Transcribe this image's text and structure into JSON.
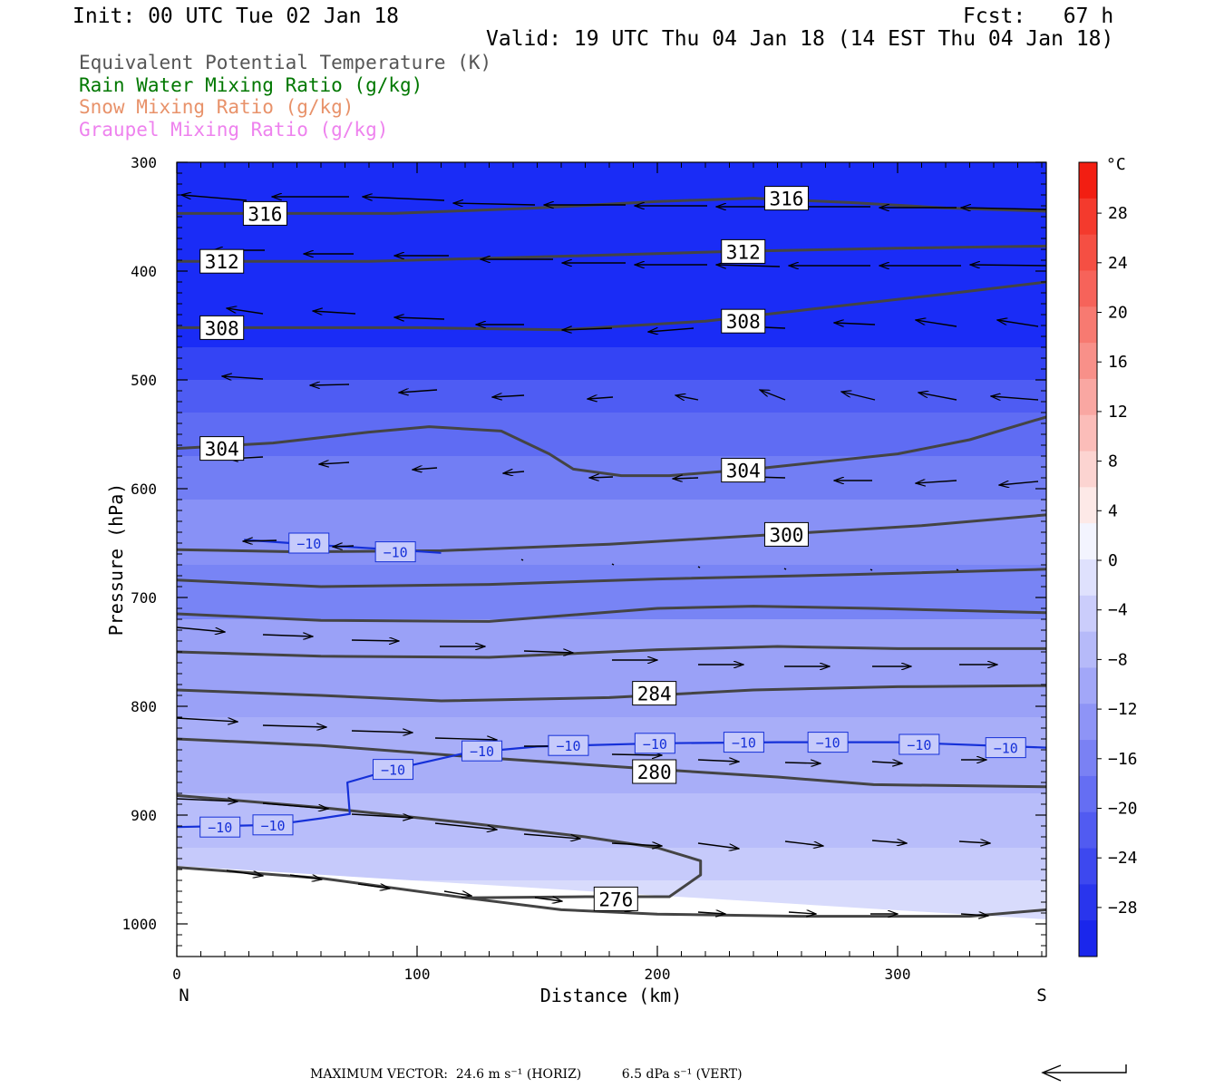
{
  "header": {
    "init": "Init: 00 UTC Tue 02 Jan 18",
    "fcst": "Fcst:   67 h",
    "valid": "Valid: 19 UTC Thu 04 Jan 18 (14 EST Thu 04 Jan 18)"
  },
  "legend": [
    {
      "label": "Equivalent Potential Temperature (K)",
      "color": "#555555"
    },
    {
      "label": "Rain Water Mixing Ratio (g/kg)",
      "color": "#007700"
    },
    {
      "label": "Snow Mixing Ratio (g/kg)",
      "color": "#e8926a"
    },
    {
      "label": "Graupel Mixing Ratio (g/kg)",
      "color": "#ee82ee"
    }
  ],
  "chart_data": {
    "type": "cross-section",
    "xlabel": "Distance (km)",
    "ylabel": "Pressure (hPa)",
    "x_ticks": [
      0,
      100,
      200,
      300
    ],
    "xlim": [
      0,
      362
    ],
    "y_ticks": [
      300,
      400,
      500,
      600,
      700,
      800,
      900,
      1000
    ],
    "ylim": [
      300,
      1030
    ],
    "x_end_labels": {
      "left": "N",
      "right": "S"
    },
    "colorbar": {
      "unit": "°C",
      "tick_labels": [
        "28",
        "24",
        "20",
        "16",
        "12",
        "8",
        "4",
        "0",
        "−4",
        "−8",
        "−12",
        "−16",
        "−20",
        "−24",
        "−28"
      ],
      "tick_values": [
        28,
        24,
        20,
        16,
        12,
        8,
        4,
        0,
        -4,
        -8,
        -12,
        -16,
        -20,
        -24,
        -28
      ]
    },
    "theta_e_contours": [
      {
        "label": "316",
        "points": [
          [
            0,
            347
          ],
          [
            90,
            347
          ],
          [
            150,
            342
          ],
          [
            200,
            336
          ],
          [
            240,
            333
          ],
          [
            280,
            337
          ],
          [
            320,
            342
          ],
          [
            362,
            345
          ]
        ]
      },
      {
        "label": "312",
        "points": [
          [
            0,
            391
          ],
          [
            80,
            391
          ],
          [
            150,
            387
          ],
          [
            230,
            382
          ],
          [
            300,
            379
          ],
          [
            362,
            377
          ]
        ]
      },
      {
        "label": "308",
        "points": [
          [
            0,
            452
          ],
          [
            100,
            452
          ],
          [
            160,
            454
          ],
          [
            220,
            446
          ],
          [
            260,
            436
          ],
          [
            320,
            421
          ],
          [
            362,
            410
          ]
        ]
      },
      {
        "label": "304",
        "points": [
          [
            0,
            563
          ],
          [
            40,
            558
          ],
          [
            80,
            548
          ],
          [
            105,
            543
          ],
          [
            135,
            547
          ],
          [
            155,
            568
          ],
          [
            165,
            582
          ],
          [
            185,
            588
          ],
          [
            205,
            588
          ],
          [
            240,
            582
          ],
          [
            300,
            568
          ],
          [
            330,
            555
          ],
          [
            362,
            534
          ]
        ]
      },
      {
        "label": "300",
        "points": [
          [
            0,
            656
          ],
          [
            50,
            658
          ],
          [
            110,
            657
          ],
          [
            180,
            651
          ],
          [
            250,
            642
          ],
          [
            310,
            634
          ],
          [
            362,
            624
          ]
        ]
      },
      {
        "label": "",
        "points": [
          [
            0,
            684
          ],
          [
            60,
            690
          ],
          [
            130,
            688
          ],
          [
            200,
            683
          ],
          [
            280,
            679
          ],
          [
            362,
            674
          ]
        ]
      },
      {
        "label": "",
        "points": [
          [
            0,
            715
          ],
          [
            60,
            721
          ],
          [
            130,
            722
          ],
          [
            200,
            710
          ],
          [
            240,
            708
          ],
          [
            290,
            710
          ],
          [
            362,
            714
          ]
        ]
      },
      {
        "label": "",
        "points": [
          [
            0,
            750
          ],
          [
            60,
            754
          ],
          [
            130,
            755
          ],
          [
            200,
            748
          ],
          [
            250,
            745
          ],
          [
            300,
            747
          ],
          [
            362,
            747
          ]
        ]
      },
      {
        "label": "284",
        "points": [
          [
            0,
            785
          ],
          [
            60,
            790
          ],
          [
            110,
            795
          ],
          [
            180,
            792
          ],
          [
            240,
            785
          ],
          [
            300,
            782
          ],
          [
            362,
            781
          ]
        ]
      },
      {
        "label": "280",
        "points": [
          [
            0,
            830
          ],
          [
            60,
            836
          ],
          [
            120,
            846
          ],
          [
            200,
            858
          ],
          [
            250,
            865
          ],
          [
            290,
            872
          ],
          [
            362,
            874
          ]
        ]
      },
      {
        "label": "",
        "points": [
          [
            0,
            882
          ],
          [
            60,
            893
          ],
          [
            120,
            907
          ],
          [
            170,
            920
          ],
          [
            200,
            930
          ],
          [
            218,
            942
          ],
          [
            218,
            955
          ],
          [
            205,
            975
          ],
          [
            170,
            975
          ],
          [
            120,
            976
          ]
        ]
      },
      {
        "label": "276",
        "points": [
          [
            0,
            948
          ],
          [
            60,
            958
          ],
          [
            120,
            976
          ],
          [
            160,
            987
          ],
          [
            200,
            991
          ],
          [
            260,
            993
          ],
          [
            330,
            993
          ],
          [
            362,
            987
          ]
        ]
      }
    ],
    "temperature_contour_minus10_upper": {
      "label": "−10",
      "points": [
        [
          28,
          647
        ],
        [
          60,
          652
        ],
        [
          90,
          656
        ],
        [
          110,
          659
        ]
      ]
    },
    "temperature_contour_minus10_lower": {
      "label": "−10",
      "points": [
        [
          0,
          911
        ],
        [
          40,
          909
        ],
        [
          60,
          903
        ],
        [
          72,
          899
        ],
        [
          71,
          870
        ],
        [
          90,
          858
        ],
        [
          120,
          843
        ],
        [
          150,
          837
        ],
        [
          200,
          834
        ],
        [
          250,
          833
        ],
        [
          300,
          833
        ],
        [
          362,
          838
        ]
      ],
      "label_positions": [
        [
          18,
          911
        ],
        [
          40,
          909
        ],
        [
          90,
          858
        ],
        [
          127,
          841
        ],
        [
          163,
          836
        ],
        [
          199,
          834
        ],
        [
          236,
          833
        ],
        [
          271,
          833
        ],
        [
          309,
          835
        ],
        [
          345,
          838
        ]
      ]
    },
    "wind_vectors": "circulation vectors, easterly (leftward) aloft above ~620 hPa, westerly (rightward) below ~680 hPa",
    "max_vector_text": "MAXIMUM VECTOR:  24.6 m s⁻¹ (HORIZ)          6.5 dPa s⁻¹ (VERT)"
  }
}
